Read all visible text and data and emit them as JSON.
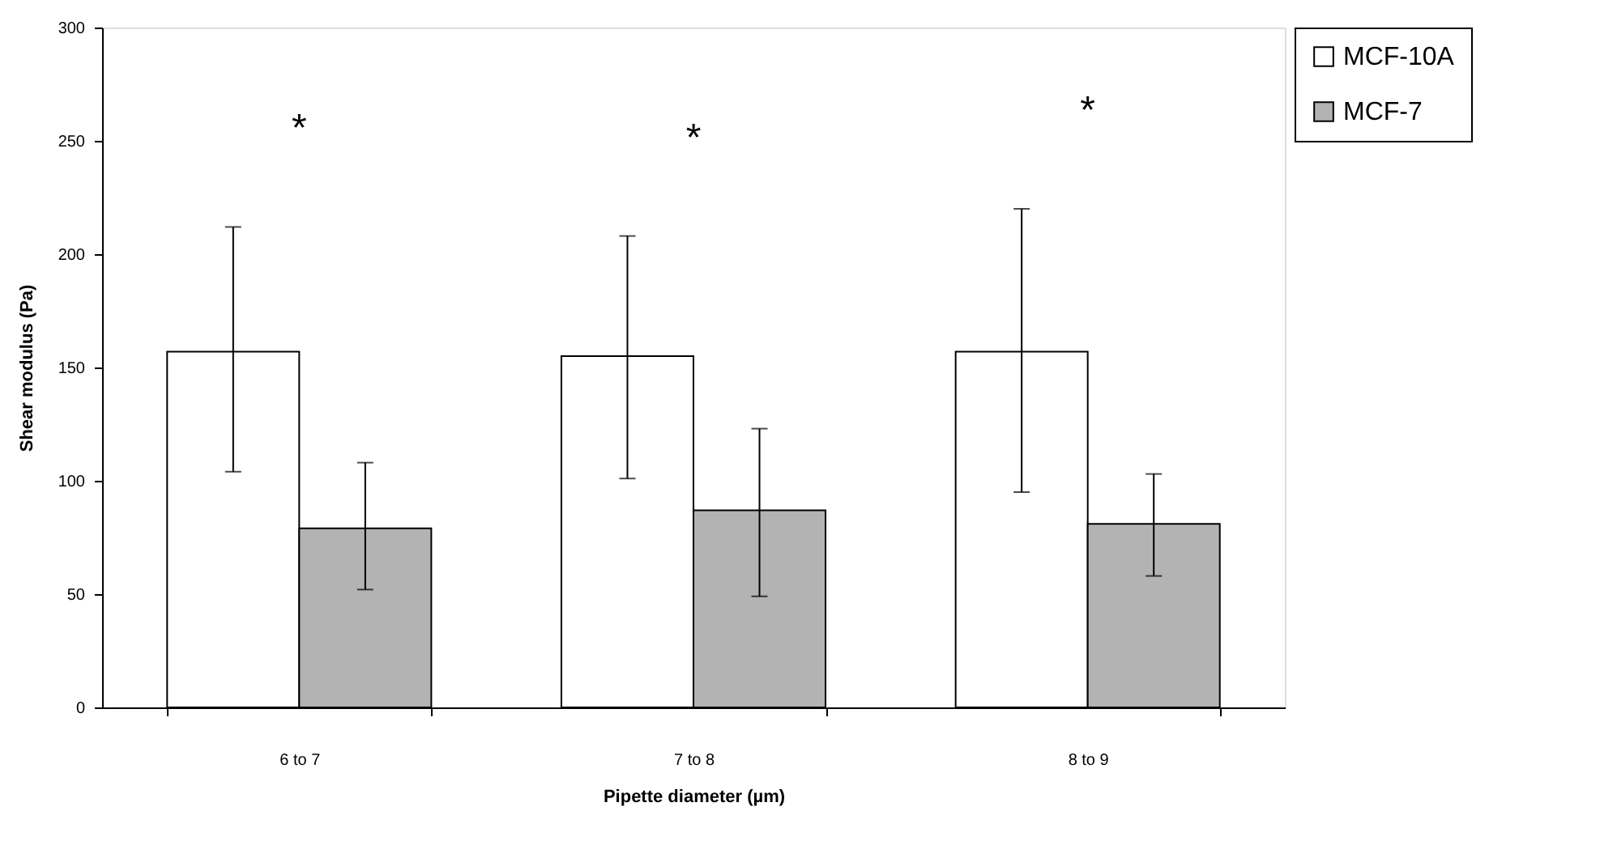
{
  "chart_data": {
    "type": "bar",
    "xlabel": "Pipette diameter (µm)",
    "ylabel": "Shear modulus (Pa)",
    "categories": [
      "6 to 7",
      "7 to 8",
      "8 to 9"
    ],
    "series": [
      {
        "name": "MCF-10A",
        "color": "#ffffff",
        "values": [
          157,
          155,
          157
        ],
        "errors": [
          [
            104,
            212
          ],
          [
            101,
            208
          ],
          [
            95,
            220
          ]
        ]
      },
      {
        "name": "MCF-7",
        "color": "#b3b3b3",
        "values": [
          79,
          87,
          81
        ],
        "errors": [
          [
            52,
            108
          ],
          [
            49,
            123
          ],
          [
            58,
            103
          ]
        ]
      }
    ],
    "ylim": [
      0,
      300
    ],
    "yticks": [
      0,
      50,
      100,
      150,
      200,
      250,
      300
    ],
    "grid": false,
    "legend": "top right",
    "annotations": [
      "*",
      "*",
      "*"
    ]
  }
}
